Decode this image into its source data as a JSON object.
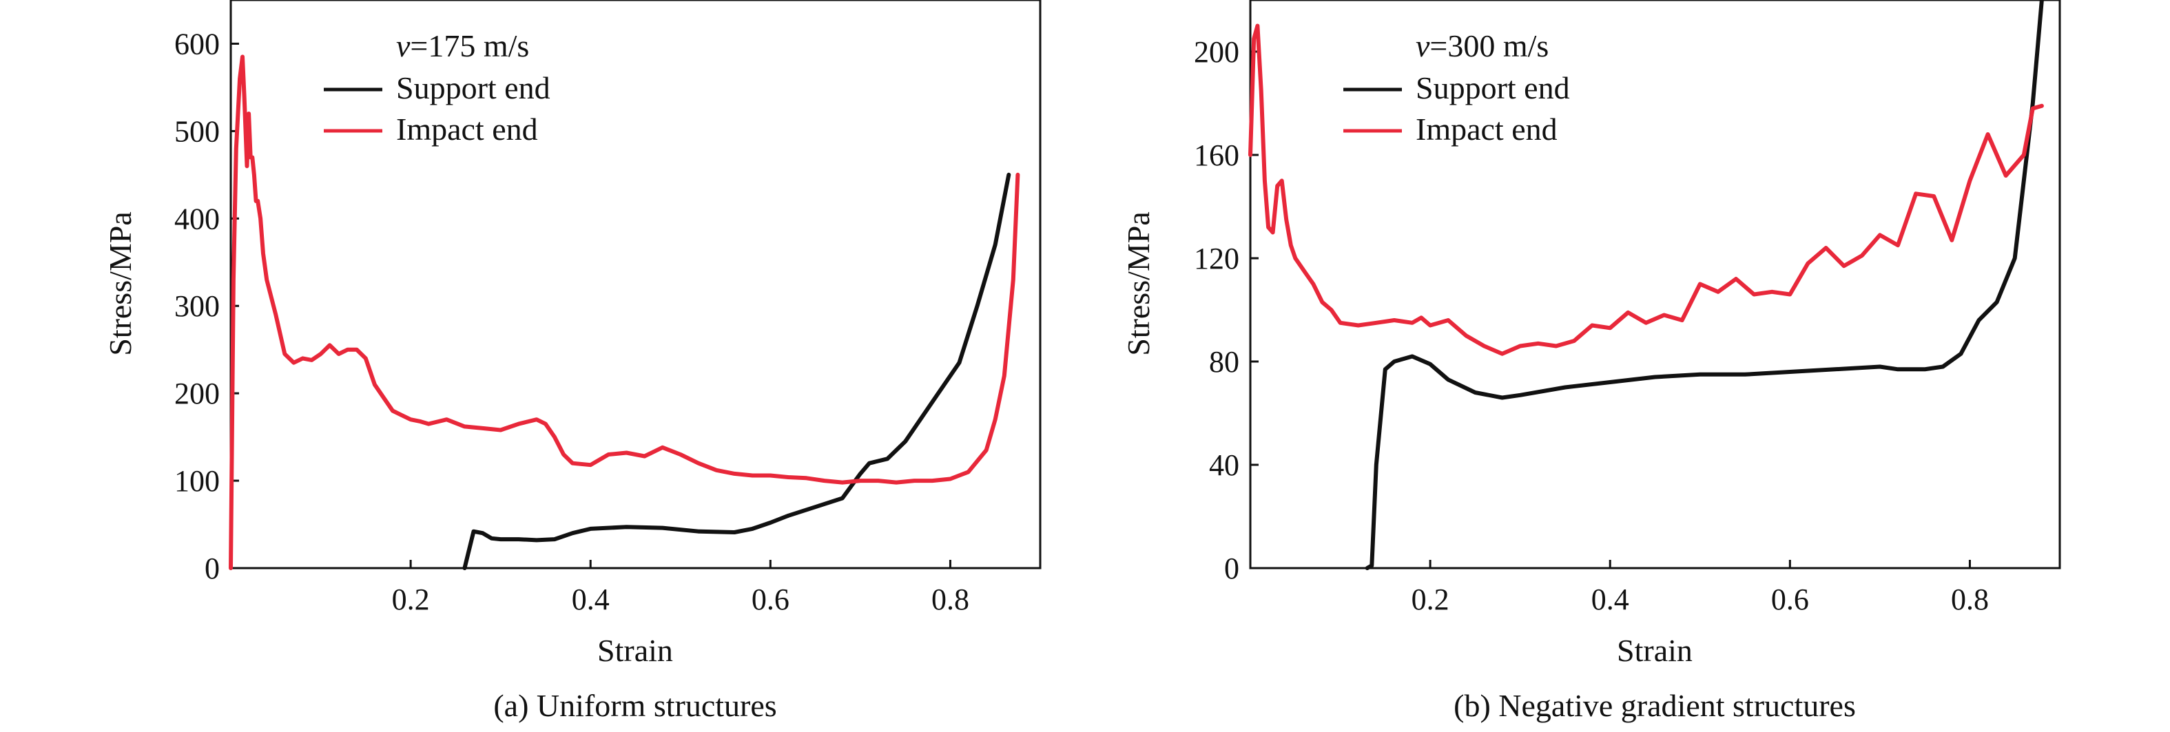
{
  "colors": {
    "support": "#111111",
    "impact": "#e8283a",
    "axis": "#111111"
  },
  "chart_data": [
    {
      "type": "line",
      "panel": "a",
      "velocity_prefix": "v",
      "velocity_value": "=175 m/s",
      "caption": "(a) Uniform structures",
      "xlabel": "Strain",
      "ylabel": "Stress/MPa",
      "xlim": [
        0,
        0.9
      ],
      "ylim": [
        0,
        650
      ],
      "xticks": [
        0.2,
        0.4,
        0.6,
        0.8
      ],
      "xtick_labels": [
        "0.2",
        "0.4",
        "0.6",
        "0.8"
      ],
      "yticks": [
        0,
        100,
        200,
        300,
        400,
        500,
        600
      ],
      "ytick_labels": [
        "0",
        "100",
        "200",
        "300",
        "400",
        "500",
        "600"
      ],
      "legend_position": "top-left",
      "series": [
        {
          "name": "Support end",
          "color_key": "support",
          "x": [
            0.26,
            0.27,
            0.28,
            0.29,
            0.3,
            0.32,
            0.34,
            0.36,
            0.38,
            0.4,
            0.44,
            0.48,
            0.52,
            0.56,
            0.58,
            0.6,
            0.62,
            0.65,
            0.68,
            0.7,
            0.71,
            0.73,
            0.75,
            0.78,
            0.81,
            0.83,
            0.85,
            0.865
          ],
          "y": [
            0,
            42,
            40,
            34,
            33,
            33,
            32,
            33,
            40,
            45,
            47,
            46,
            42,
            41,
            45,
            52,
            60,
            70,
            80,
            108,
            120,
            125,
            145,
            190,
            235,
            300,
            370,
            450
          ]
        },
        {
          "name": "Impact end",
          "color_key": "impact",
          "x": [
            0.0,
            0.003,
            0.006,
            0.01,
            0.013,
            0.015,
            0.018,
            0.02,
            0.022,
            0.024,
            0.026,
            0.028,
            0.03,
            0.033,
            0.036,
            0.04,
            0.05,
            0.06,
            0.07,
            0.08,
            0.09,
            0.1,
            0.11,
            0.12,
            0.13,
            0.14,
            0.15,
            0.16,
            0.17,
            0.18,
            0.19,
            0.2,
            0.21,
            0.22,
            0.24,
            0.26,
            0.28,
            0.3,
            0.32,
            0.34,
            0.35,
            0.36,
            0.37,
            0.38,
            0.4,
            0.42,
            0.44,
            0.46,
            0.47,
            0.48,
            0.5,
            0.52,
            0.54,
            0.56,
            0.58,
            0.6,
            0.62,
            0.64,
            0.66,
            0.68,
            0.7,
            0.72,
            0.74,
            0.76,
            0.78,
            0.8,
            0.82,
            0.84,
            0.85,
            0.86,
            0.87,
            0.875
          ],
          "y": [
            0,
            330,
            480,
            560,
            585,
            540,
            460,
            520,
            470,
            470,
            450,
            420,
            420,
            400,
            360,
            330,
            290,
            245,
            235,
            240,
            238,
            245,
            255,
            245,
            250,
            250,
            240,
            210,
            195,
            180,
            175,
            170,
            168,
            165,
            170,
            162,
            160,
            158,
            165,
            170,
            165,
            150,
            130,
            120,
            118,
            130,
            132,
            128,
            133,
            138,
            130,
            120,
            112,
            108,
            106,
            106,
            104,
            103,
            100,
            98,
            100,
            100,
            98,
            100,
            100,
            102,
            110,
            135,
            170,
            220,
            330,
            450
          ]
        }
      ]
    },
    {
      "type": "line",
      "panel": "b",
      "velocity_prefix": "v",
      "velocity_value": "=300 m/s",
      "caption": "(b) Negative gradient structures",
      "xlabel": "Strain",
      "ylabel": "Stress/MPa",
      "xlim": [
        0,
        0.9
      ],
      "ylim": [
        0,
        220
      ],
      "xticks": [
        0.2,
        0.4,
        0.6,
        0.8
      ],
      "xtick_labels": [
        "0.2",
        "0.4",
        "0.6",
        "0.8"
      ],
      "yticks": [
        0,
        40,
        80,
        120,
        160,
        200
      ],
      "ytick_labels": [
        "0",
        "40",
        "80",
        "120",
        "160",
        "200"
      ],
      "legend_position": "top-left",
      "series": [
        {
          "name": "Support end",
          "color_key": "support",
          "x": [
            0.13,
            0.135,
            0.14,
            0.15,
            0.16,
            0.18,
            0.2,
            0.22,
            0.25,
            0.28,
            0.3,
            0.35,
            0.4,
            0.45,
            0.5,
            0.55,
            0.6,
            0.65,
            0.7,
            0.72,
            0.75,
            0.77,
            0.79,
            0.81,
            0.83,
            0.85,
            0.86,
            0.87,
            0.88
          ],
          "y": [
            0,
            1,
            40,
            77,
            80,
            82,
            79,
            73,
            68,
            66,
            67,
            70,
            72,
            74,
            75,
            75,
            76,
            77,
            78,
            77,
            77,
            78,
            83,
            96,
            103,
            120,
            150,
            180,
            220
          ]
        },
        {
          "name": "Impact end",
          "color_key": "impact",
          "x": [
            0.0,
            0.004,
            0.008,
            0.012,
            0.016,
            0.02,
            0.025,
            0.03,
            0.035,
            0.04,
            0.045,
            0.05,
            0.06,
            0.07,
            0.08,
            0.09,
            0.1,
            0.12,
            0.14,
            0.16,
            0.18,
            0.19,
            0.2,
            0.22,
            0.24,
            0.26,
            0.28,
            0.3,
            0.32,
            0.34,
            0.36,
            0.38,
            0.4,
            0.42,
            0.44,
            0.46,
            0.48,
            0.5,
            0.52,
            0.54,
            0.56,
            0.58,
            0.6,
            0.62,
            0.64,
            0.66,
            0.68,
            0.7,
            0.72,
            0.74,
            0.76,
            0.78,
            0.8,
            0.82,
            0.84,
            0.86,
            0.87,
            0.88
          ],
          "y": [
            160,
            205,
            210,
            185,
            150,
            132,
            130,
            148,
            150,
            135,
            125,
            120,
            115,
            110,
            103,
            100,
            95,
            94,
            95,
            96,
            95,
            97,
            94,
            96,
            90,
            86,
            83,
            86,
            87,
            86,
            88,
            94,
            93,
            99,
            95,
            98,
            96,
            110,
            107,
            112,
            106,
            107,
            106,
            118,
            124,
            117,
            121,
            129,
            125,
            145,
            144,
            127,
            150,
            168,
            152,
            160,
            178,
            179
          ]
        }
      ]
    }
  ]
}
